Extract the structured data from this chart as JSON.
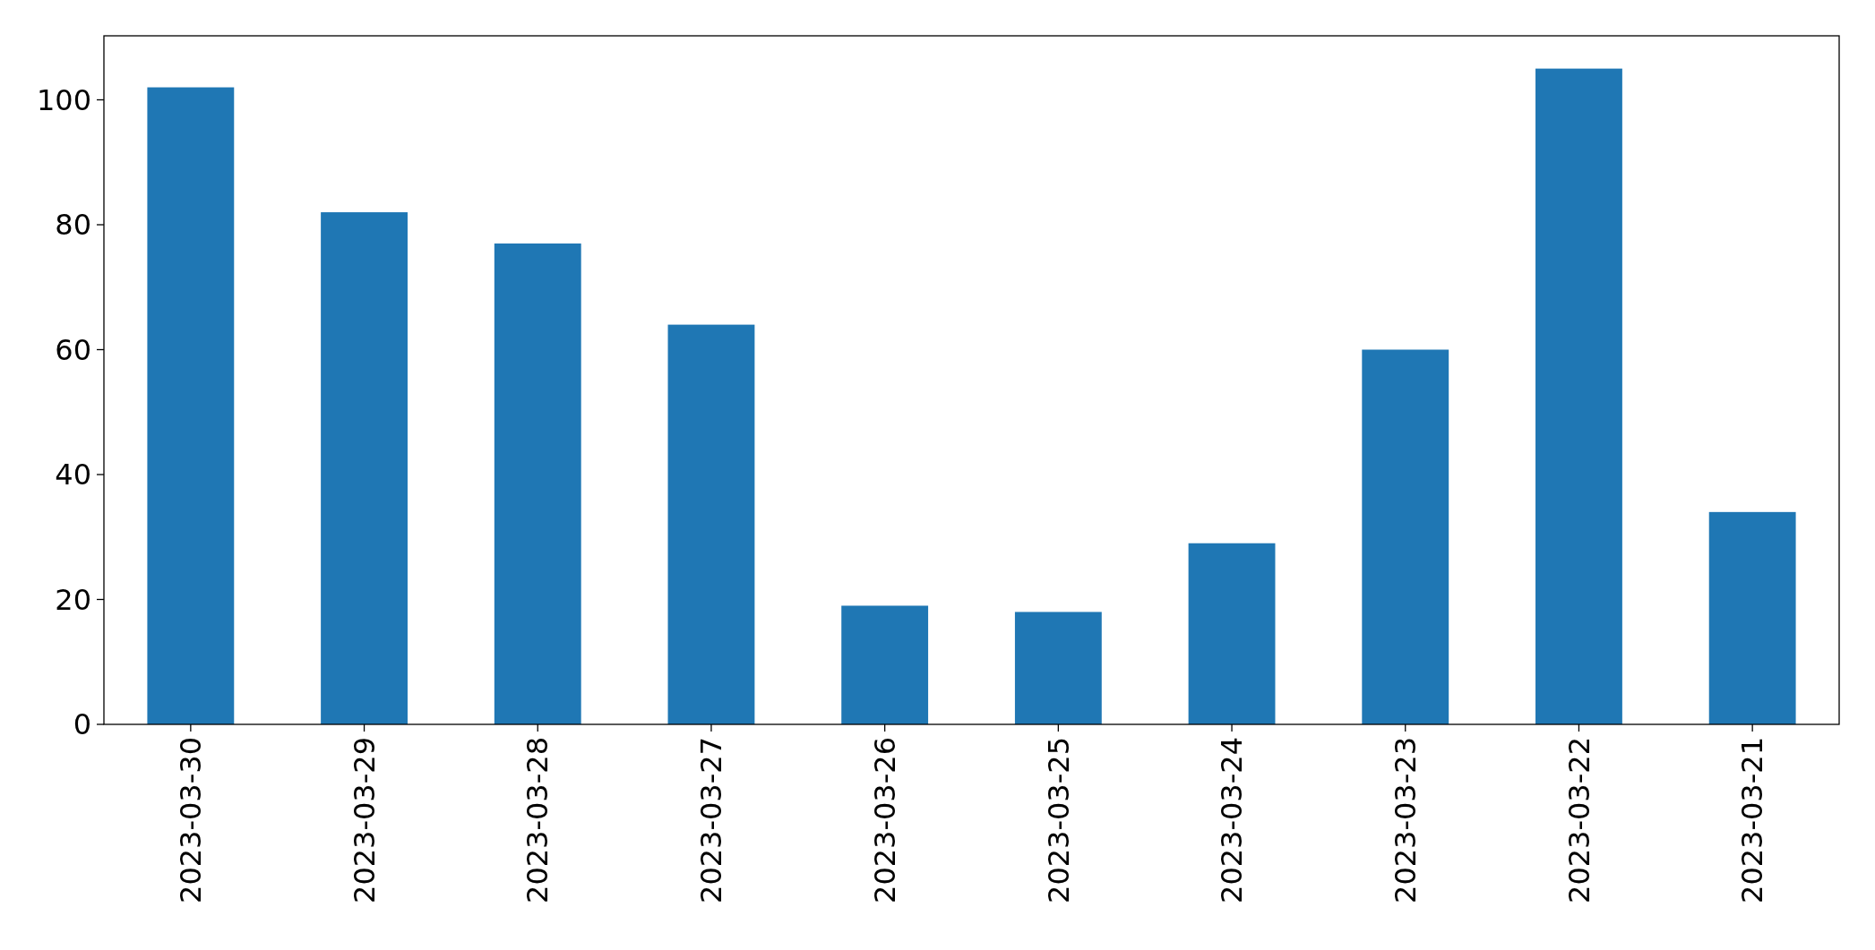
{
  "chart_data": {
    "type": "bar",
    "categories": [
      "2023-03-30",
      "2023-03-29",
      "2023-03-28",
      "2023-03-27",
      "2023-03-26",
      "2023-03-25",
      "2023-03-24",
      "2023-03-23",
      "2023-03-22",
      "2023-03-21"
    ],
    "values": [
      102,
      82,
      77,
      64,
      19,
      18,
      29,
      60,
      105,
      34
    ],
    "color": "#1f77b4",
    "ylim": [
      0,
      110.25
    ],
    "yticks": [
      0,
      20,
      40,
      60,
      80,
      100
    ],
    "grid": false
  }
}
